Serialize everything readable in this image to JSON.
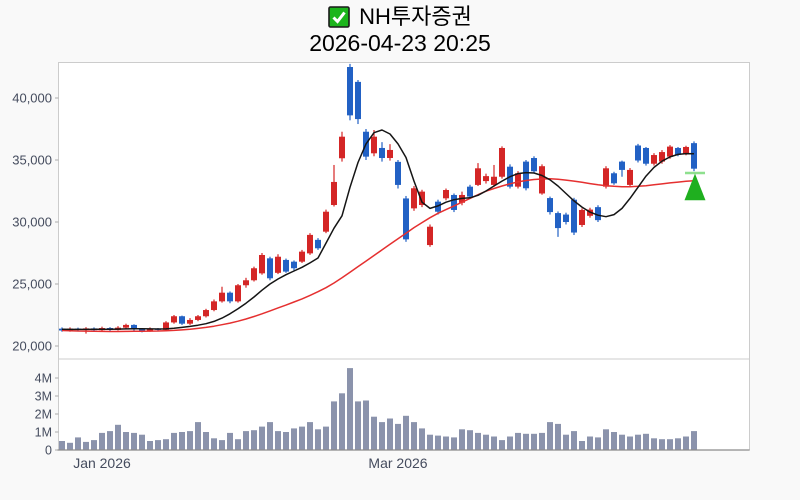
{
  "header": {
    "checkbox_icon": "green-checked-checkbox",
    "title": "NH투자증권",
    "subtitle": "2026-04-23 20:25"
  },
  "colors": {
    "up_candle": "#d42626",
    "down_candle": "#2261c4",
    "ma_fast": "#151515",
    "ma_slow": "#e53030",
    "volume_bar": "#8b93ac",
    "axis_text": "#454c5e",
    "plot_border": "#cccccc",
    "volume_axis_line": "#8c8c8c",
    "tick": "#aaaaaa",
    "marker_green": "#1faf1f",
    "marker_line": "#8ee08e",
    "plot_bg": "#ffffff",
    "page_bg": "#f9f9f9",
    "checkbox_fill": "#1cb51c",
    "checkbox_border": "#1a1a1a",
    "checkbox_check": "#ffffff"
  },
  "chart_data": {
    "type": "candlestick",
    "title": "NH투자증권",
    "subtitle": "2026-04-23 20:25",
    "grid": false,
    "legend": null,
    "price_axis": {
      "tick_labels": [
        "40,000",
        "35,000",
        "30,000",
        "25,000",
        "20,000"
      ],
      "tick_values": [
        40000,
        35000,
        30000,
        25000,
        20000
      ],
      "range": [
        19100,
        42900
      ]
    },
    "volume_axis": {
      "tick_labels": [
        "4M",
        "3M",
        "2M",
        "1M",
        "0"
      ],
      "tick_values_m": [
        4,
        3,
        2,
        1,
        0
      ],
      "unit": "millions of shares"
    },
    "x_axis_labels": [
      {
        "label": "Jan 2026",
        "candle_index": 5
      },
      {
        "label": "Mar 2026",
        "candle_index": 42
      }
    ],
    "candles_ohlc": [
      [
        21400,
        21500,
        21150,
        21250
      ],
      [
        21250,
        21500,
        21150,
        21400
      ],
      [
        21400,
        21480,
        21200,
        21300
      ],
      [
        21300,
        21520,
        21000,
        21420
      ],
      [
        21420,
        21500,
        21180,
        21280
      ],
      [
        21280,
        21560,
        21200,
        21450
      ],
      [
        21450,
        21520,
        21150,
        21300
      ],
      [
        21300,
        21600,
        21250,
        21480
      ],
      [
        21480,
        21800,
        21400,
        21700
      ],
      [
        21700,
        21750,
        21250,
        21350
      ],
      [
        21350,
        21450,
        21100,
        21250
      ],
      [
        21250,
        21500,
        21150,
        21400
      ],
      [
        21400,
        21450,
        21200,
        21300
      ],
      [
        21300,
        22000,
        21250,
        21900
      ],
      [
        21900,
        22500,
        21800,
        22400
      ],
      [
        22400,
        22450,
        21700,
        21800
      ],
      [
        21800,
        22250,
        21700,
        22100
      ],
      [
        22100,
        22500,
        22000,
        22400
      ],
      [
        22400,
        23000,
        22300,
        22900
      ],
      [
        22900,
        23750,
        22800,
        23600
      ],
      [
        23600,
        24780,
        23500,
        24300
      ],
      [
        24300,
        24400,
        23450,
        23600
      ],
      [
        23600,
        25000,
        23500,
        24900
      ],
      [
        24900,
        25500,
        24700,
        25300
      ],
      [
        25300,
        26400,
        25200,
        26270
      ],
      [
        25860,
        27500,
        25750,
        27340
      ],
      [
        27070,
        27200,
        25300,
        25460
      ],
      [
        25900,
        27400,
        25800,
        27200
      ],
      [
        26940,
        27050,
        25900,
        26000
      ],
      [
        26800,
        26900,
        26100,
        26270
      ],
      [
        26800,
        27750,
        26700,
        27610
      ],
      [
        27470,
        29100,
        27350,
        28960
      ],
      [
        28560,
        28700,
        27750,
        27880
      ],
      [
        29220,
        31000,
        29100,
        30830
      ],
      [
        31370,
        34600,
        31250,
        33230
      ],
      [
        35140,
        37280,
        34870,
        36880
      ],
      [
        42500,
        42750,
        38200,
        38600
      ],
      [
        41300,
        41450,
        37900,
        38300
      ],
      [
        37280,
        37500,
        35000,
        35270
      ],
      [
        35540,
        37420,
        35300,
        36880
      ],
      [
        35970,
        36440,
        34870,
        35160
      ],
      [
        35160,
        36280,
        34950,
        35810
      ],
      [
        34850,
        35000,
        32700,
        32990
      ],
      [
        31900,
        32100,
        28400,
        28600
      ],
      [
        31100,
        32900,
        30900,
        32720
      ],
      [
        31370,
        32600,
        31200,
        32450
      ],
      [
        28140,
        29800,
        28000,
        29620
      ],
      [
        31640,
        31800,
        30600,
        30830
      ],
      [
        31910,
        32700,
        31750,
        32580
      ],
      [
        32180,
        32300,
        30800,
        30970
      ],
      [
        31550,
        32450,
        31350,
        32180
      ],
      [
        32850,
        33000,
        31900,
        32050
      ],
      [
        32990,
        34750,
        32900,
        34330
      ],
      [
        33300,
        33900,
        33100,
        33700
      ],
      [
        32990,
        34600,
        32850,
        33650
      ],
      [
        33650,
        36100,
        33500,
        35970
      ],
      [
        34460,
        34650,
        32700,
        32850
      ],
      [
        32850,
        34100,
        32700,
        33930
      ],
      [
        34870,
        35000,
        32550,
        32720
      ],
      [
        35160,
        35300,
        33950,
        34090
      ],
      [
        32300,
        34650,
        32200,
        34500
      ],
      [
        31930,
        32050,
        30600,
        30800
      ],
      [
        30720,
        30850,
        28800,
        29510
      ],
      [
        30600,
        30750,
        29800,
        30000
      ],
      [
        31800,
        31950,
        28950,
        29150
      ],
      [
        29760,
        31100,
        29600,
        30970
      ],
      [
        30500,
        31150,
        30350,
        31000
      ],
      [
        31200,
        31350,
        30000,
        30150
      ],
      [
        32850,
        34500,
        32700,
        34330
      ],
      [
        33930,
        34050,
        33000,
        33120
      ],
      [
        34870,
        34950,
        33650,
        34200
      ],
      [
        32990,
        34350,
        32850,
        34200
      ],
      [
        36170,
        36300,
        34800,
        34960
      ],
      [
        35970,
        36050,
        34550,
        34700
      ],
      [
        34700,
        35550,
        34550,
        35400
      ],
      [
        34870,
        35800,
        34700,
        35640
      ],
      [
        35270,
        36200,
        35100,
        36080
      ],
      [
        35970,
        36050,
        35300,
        35430
      ],
      [
        35500,
        36150,
        35380,
        36050
      ],
      [
        36360,
        36500,
        34100,
        34300
      ]
    ],
    "volumes_m": [
      0.5,
      0.4,
      0.7,
      0.45,
      0.55,
      0.95,
      1.05,
      1.4,
      1.0,
      0.95,
      0.85,
      0.5,
      0.55,
      0.6,
      0.95,
      1.0,
      1.05,
      1.55,
      1.0,
      0.65,
      0.55,
      0.95,
      0.6,
      1.05,
      1.1,
      1.3,
      1.55,
      1.05,
      1.0,
      1.2,
      1.3,
      1.55,
      1.15,
      1.3,
      2.7,
      3.15,
      4.55,
      2.7,
      2.75,
      1.85,
      1.55,
      1.75,
      1.45,
      1.9,
      1.55,
      1.2,
      0.85,
      0.8,
      0.75,
      0.7,
      1.15,
      1.1,
      0.95,
      0.85,
      0.75,
      0.55,
      0.75,
      0.95,
      0.9,
      0.9,
      0.95,
      1.55,
      1.45,
      0.85,
      1.05,
      0.5,
      0.75,
      0.7,
      1.15,
      1.0,
      0.85,
      0.75,
      0.85,
      0.9,
      0.65,
      0.6,
      0.6,
      0.65,
      0.75,
      1.05
    ],
    "ma_fast": [
      21350,
      21340,
      21335,
      21340,
      21345,
      21350,
      21355,
      21365,
      21380,
      21395,
      21390,
      21380,
      21370,
      21380,
      21430,
      21500,
      21580,
      21680,
      21800,
      21980,
      22250,
      22600,
      23000,
      23450,
      23950,
      24500,
      25000,
      25400,
      25750,
      26050,
      26350,
      26700,
      27100,
      28300,
      29500,
      30500,
      32800,
      34800,
      36300,
      37200,
      37420,
      37100,
      36300,
      35200,
      33300,
      31600,
      31100,
      31300,
      31600,
      31800,
      31900,
      31950,
      32150,
      32500,
      32900,
      33300,
      33650,
      33900,
      33980,
      33950,
      33750,
      33400,
      32900,
      32300,
      31700,
      31200,
      30800,
      30550,
      30430,
      30600,
      31100,
      31900,
      32800,
      33700,
      34400,
      34900,
      35250,
      35450,
      35520,
      35500
    ],
    "ma_slow": [
      21250,
      21230,
      21210,
      21200,
      21190,
      21180,
      21170,
      21170,
      21180,
      21190,
      21190,
      21200,
      21210,
      21230,
      21260,
      21300,
      21350,
      21420,
      21500,
      21600,
      21720,
      21850,
      22000,
      22180,
      22380,
      22600,
      22830,
      23070,
      23300,
      23550,
      23800,
      24080,
      24380,
      24700,
      25080,
      25500,
      25950,
      26400,
      26850,
      27300,
      27750,
      28200,
      28650,
      29100,
      29550,
      29950,
      30350,
      30700,
      31000,
      31300,
      31600,
      31900,
      32200,
      32480,
      32700,
      32900,
      33080,
      33230,
      33350,
      33430,
      33470,
      33480,
      33440,
      33380,
      33300,
      33200,
      33100,
      33000,
      32930,
      32880,
      32850,
      32850,
      32880,
      32930,
      33000,
      33070,
      33150,
      33220,
      33280,
      33320
    ],
    "marker": {
      "type": "triangle-up-buy-signal",
      "candle_index": 79,
      "line_price": 33950,
      "apex_price": 33900,
      "base_price": 31750
    }
  }
}
